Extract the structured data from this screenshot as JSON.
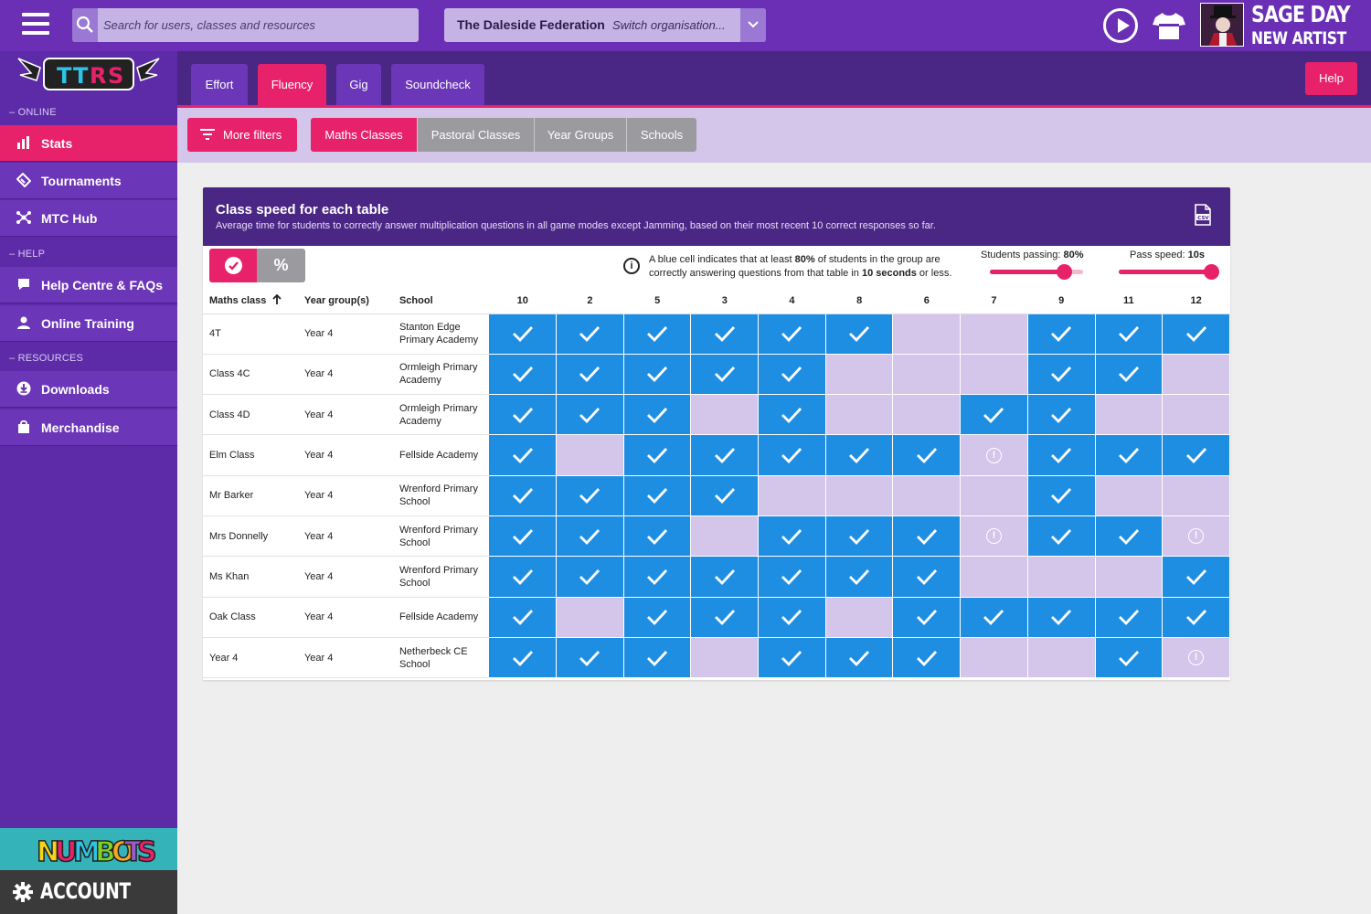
{
  "topbar": {
    "search_placeholder": "Search for users, classes and resources",
    "org_name": "The Daleside Federation",
    "org_switch": "Switch organisation...",
    "rock_name_line1": "SAGE DAY",
    "rock_name_line2": "NEW ARTIST"
  },
  "sidebar": {
    "sections": {
      "online": "– ONLINE",
      "help": "– HELP",
      "resources": "– RESOURCES"
    },
    "items": [
      {
        "label": "Stats",
        "icon": "bar-chart-icon"
      },
      {
        "label": "Tournaments",
        "icon": "ticket-icon"
      },
      {
        "label": "MTC Hub",
        "icon": "network-icon"
      },
      {
        "label": "Help Centre & FAQs",
        "icon": "chat-icon"
      },
      {
        "label": "Online Training",
        "icon": "person-icon"
      },
      {
        "label": "Downloads",
        "icon": "download-icon"
      },
      {
        "label": "Merchandise",
        "icon": "bag-icon"
      }
    ],
    "account_label": "ACCOUNT"
  },
  "tabs": [
    "Effort",
    "Fluency",
    "Gig",
    "Soundcheck"
  ],
  "active_tab": "Fluency",
  "help_label": "Help",
  "filters": {
    "more_filters": "More filters",
    "segments": [
      "Maths Classes",
      "Pastoral Classes",
      "Year Groups",
      "Schools"
    ]
  },
  "card": {
    "title": "Class speed for each table",
    "subtitle": "Average time for students to correctly answer multiplication questions in all game modes except Jamming, based on their most recent 10 correct responses so far.",
    "toggle_percent": "%",
    "info_pre": "A blue cell indicates that at least ",
    "info_pct": "80%",
    "info_mid": " of students in the group are correctly answering questions from that table in ",
    "info_secs": "10 seconds",
    "info_post": " or less.",
    "students_passing_label": "Students passing: ",
    "students_passing_value": "80%",
    "students_passing_fraction": 0.8,
    "pass_speed_label": "Pass speed: ",
    "pass_speed_value": "10s",
    "pass_speed_fraction": 1.0
  },
  "table": {
    "col_class": "Maths class",
    "col_year": "Year group(s)",
    "col_school": "School",
    "times_tables": [
      "10",
      "2",
      "5",
      "3",
      "4",
      "8",
      "6",
      "7",
      "9",
      "11",
      "12"
    ],
    "rows": [
      {
        "cls": "4T",
        "year": "Year 4",
        "school": "Stanton Edge Primary Academy",
        "cells": [
          "P",
          "P",
          "P",
          "P",
          "P",
          "P",
          "F",
          "F",
          "P",
          "P",
          "P"
        ]
      },
      {
        "cls": "Class 4C",
        "year": "Year 4",
        "school": "Ormleigh Primary Academy",
        "cells": [
          "P",
          "P",
          "P",
          "P",
          "P",
          "F",
          "F",
          "F",
          "P",
          "P",
          "F"
        ]
      },
      {
        "cls": "Class 4D",
        "year": "Year 4",
        "school": "Ormleigh Primary Academy",
        "cells": [
          "P",
          "P",
          "P",
          "F",
          "P",
          "F",
          "F",
          "P",
          "P",
          "F",
          "F"
        ]
      },
      {
        "cls": "Elm Class",
        "year": "Year 4",
        "school": "Fellside Academy",
        "cells": [
          "P",
          "F",
          "P",
          "P",
          "P",
          "P",
          "P",
          "W",
          "P",
          "P",
          "P"
        ]
      },
      {
        "cls": "Mr Barker",
        "year": "Year 4",
        "school": "Wrenford Primary School",
        "cells": [
          "P",
          "P",
          "P",
          "P",
          "F",
          "F",
          "F",
          "F",
          "P",
          "F",
          "F"
        ]
      },
      {
        "cls": "Mrs Donnelly",
        "year": "Year 4",
        "school": "Wrenford Primary School",
        "cells": [
          "P",
          "P",
          "P",
          "F",
          "P",
          "P",
          "P",
          "W",
          "P",
          "P",
          "W"
        ]
      },
      {
        "cls": "Ms Khan",
        "year": "Year 4",
        "school": "Wrenford Primary School",
        "cells": [
          "P",
          "P",
          "P",
          "P",
          "P",
          "P",
          "P",
          "F",
          "F",
          "F",
          "P"
        ]
      },
      {
        "cls": "Oak Class",
        "year": "Year 4",
        "school": "Fellside Academy",
        "cells": [
          "P",
          "F",
          "P",
          "P",
          "P",
          "F",
          "P",
          "P",
          "P",
          "P",
          "P"
        ]
      },
      {
        "cls": "Year 4",
        "year": "Year 4",
        "school": "Netherbeck CE School",
        "cells": [
          "P",
          "P",
          "P",
          "F",
          "P",
          "P",
          "P",
          "F",
          "F",
          "P",
          "W"
        ]
      }
    ]
  },
  "colors": {
    "pass": "#1e8ee3",
    "fail": "#d4c5ea",
    "accent": "#e8226a",
    "brand_purple": "#6a2fb4"
  }
}
